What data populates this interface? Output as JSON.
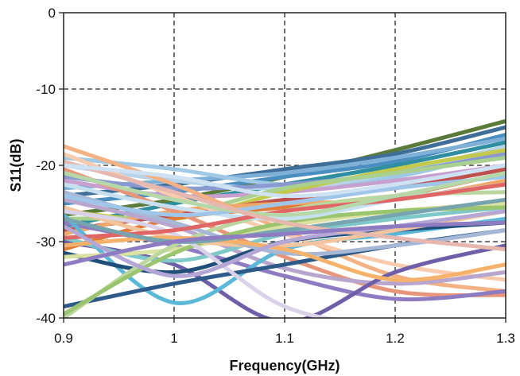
{
  "chart_data": {
    "type": "line",
    "title": "",
    "xlabel": "Frequency(GHz)",
    "ylabel": "S11(dB)",
    "xlim": [
      0.9,
      1.3
    ],
    "ylim": [
      -40,
      0
    ],
    "xticks": [
      0.9,
      1,
      1.1,
      1.2,
      1.3
    ],
    "xtick_labels": [
      "0.9",
      "1",
      "1.1",
      "1.2",
      "1.3"
    ],
    "yticks": [
      0,
      -10,
      -20,
      -30,
      -40
    ],
    "ytick_labels": [
      "0",
      "-10",
      "-20",
      "-30",
      "-40"
    ],
    "grid": "dashed",
    "legend": "none",
    "x": [
      0.9,
      1.0,
      1.1,
      1.2,
      1.3
    ],
    "series": [
      {
        "color": "#5a7a3a",
        "values": [
          -26.5,
          -24.5,
          -21.5,
          -18.0,
          -14.2
        ]
      },
      {
        "color": "#3f6f99",
        "values": [
          -24.0,
          -22.5,
          -20.5,
          -18.5,
          -15.0
        ]
      },
      {
        "color": "#4a8fc0",
        "values": [
          -25.0,
          -23.5,
          -21.5,
          -19.5,
          -16.0
        ]
      },
      {
        "color": "#7fb0d8",
        "values": [
          -23.0,
          -22.0,
          -21.0,
          -19.0,
          -16.5
        ]
      },
      {
        "color": "#2f8ea0",
        "values": [
          -28.0,
          -25.0,
          -22.5,
          -20.0,
          -17.0
        ]
      },
      {
        "color": "#9fc9e4",
        "values": [
          -19.0,
          -20.5,
          -22.5,
          -21.5,
          -18.0
        ]
      },
      {
        "color": "#b8d4ea",
        "values": [
          -20.0,
          -22.0,
          -23.0,
          -21.0,
          -17.5
        ]
      },
      {
        "color": "#8a9ad0",
        "values": [
          -21.5,
          -23.0,
          -22.5,
          -21.0,
          -18.5
        ]
      },
      {
        "color": "#c7a0cf",
        "values": [
          -22.0,
          -24.0,
          -23.5,
          -22.0,
          -20.0
        ]
      },
      {
        "color": "#c3c94a",
        "values": [
          -26.0,
          -27.0,
          -23.5,
          -20.5,
          -18.0
        ]
      },
      {
        "color": "#a9d08e",
        "values": [
          -27.0,
          -26.5,
          -23.0,
          -21.0,
          -19.0
        ]
      },
      {
        "color": "#c0504d",
        "values": [
          -28.5,
          -26.5,
          -24.5,
          -23.0,
          -20.5
        ]
      },
      {
        "color": "#e07b39",
        "values": [
          -31.0,
          -27.0,
          -25.5,
          -24.0,
          -21.0
        ]
      },
      {
        "color": "#f0a868",
        "values": [
          -29.0,
          -26.0,
          -25.0,
          -24.5,
          -22.0
        ]
      },
      {
        "color": "#f4b183",
        "values": [
          -17.5,
          -22.5,
          -28.5,
          -34.5,
          -36.5
        ]
      },
      {
        "color": "#f8cbad",
        "values": [
          -18.5,
          -24.0,
          -29.0,
          -33.0,
          -35.0
        ]
      },
      {
        "color": "#e8967a",
        "values": [
          -20.5,
          -26.0,
          -32.0,
          -36.5,
          -37.0
        ]
      },
      {
        "color": "#b9a6cf",
        "values": [
          -24.5,
          -28.0,
          -33.5,
          -35.5,
          -34.0
        ]
      },
      {
        "color": "#8e7cc3",
        "values": [
          -27.5,
          -30.5,
          -34.5,
          -37.5,
          -36.5
        ]
      },
      {
        "color": "#6f5ea8",
        "values": [
          -30.0,
          -33.0,
          -40.5,
          -34.0,
          -30.5
        ]
      },
      {
        "color": "#7ec8c8",
        "values": [
          -29.5,
          -32.5,
          -29.0,
          -27.0,
          -25.5
        ]
      },
      {
        "color": "#5cb8d8",
        "values": [
          -26.5,
          -38.0,
          -31.0,
          -29.0,
          -27.0
        ]
      },
      {
        "color": "#2e5a8a",
        "values": [
          -38.5,
          -35.5,
          -33.0,
          -30.5,
          -28.5
        ]
      },
      {
        "color": "#1f4e79",
        "values": [
          -31.5,
          -34.0,
          -30.0,
          -28.5,
          -27.5
        ]
      },
      {
        "color": "#d9e1a3",
        "values": [
          -32.0,
          -31.0,
          -28.0,
          -26.0,
          -25.0
        ]
      },
      {
        "color": "#bcd6a0",
        "values": [
          -40.0,
          -30.5,
          -26.0,
          -24.0,
          -23.5
        ]
      },
      {
        "color": "#9ac56e",
        "values": [
          -39.5,
          -31.5,
          -27.5,
          -26.0,
          -25.5
        ]
      },
      {
        "color": "#c6e0f0",
        "values": [
          -22.5,
          -25.5,
          -27.0,
          -24.5,
          -22.5
        ]
      },
      {
        "color": "#f2c4a0",
        "values": [
          -25.5,
          -29.5,
          -30.5,
          -28.5,
          -26.0
        ]
      },
      {
        "color": "#d9d2e9",
        "values": [
          -26.0,
          -29.0,
          -38.5,
          -41.0,
          -41.5
        ]
      },
      {
        "color": "#a7b7d6",
        "values": [
          -23.5,
          -27.5,
          -31.5,
          -30.5,
          -28.5
        ]
      },
      {
        "color": "#e06666",
        "values": [
          -29.5,
          -28.5,
          -26.0,
          -24.5,
          -22.5
        ]
      },
      {
        "color": "#f6b26b",
        "values": [
          -30.5,
          -29.5,
          -31.0,
          -35.0,
          -33.0
        ]
      },
      {
        "color": "#b4a7d6",
        "values": [
          -28.0,
          -34.5,
          -30.0,
          -28.0,
          -26.0
        ]
      },
      {
        "color": "#76a5af",
        "values": [
          -27.0,
          -30.0,
          -28.5,
          -26.5,
          -24.5
        ]
      },
      {
        "color": "#9fc5e8",
        "values": [
          -24.0,
          -26.5,
          -25.0,
          -23.0,
          -21.5
        ]
      },
      {
        "color": "#b6d7a8",
        "values": [
          -21.0,
          -24.5,
          -26.5,
          -24.0,
          -21.0
        ]
      },
      {
        "color": "#e6b8af",
        "values": [
          -19.5,
          -23.5,
          -27.5,
          -29.5,
          -31.0
        ]
      },
      {
        "color": "#cfe2f3",
        "values": [
          -20.0,
          -21.5,
          -24.0,
          -22.5,
          -20.0
        ]
      },
      {
        "color": "#8e7cc3",
        "values": [
          -33.0,
          -30.0,
          -29.0,
          -28.0,
          -27.5
        ]
      }
    ]
  }
}
